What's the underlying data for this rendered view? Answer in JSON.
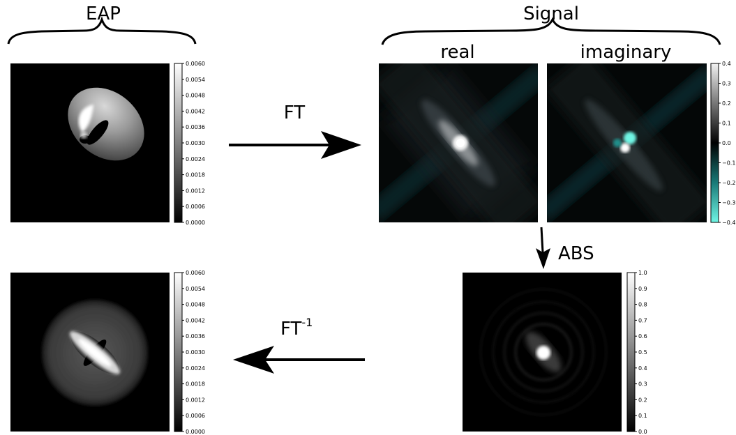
{
  "labels": {
    "eap": "EAP",
    "signal": "Signal",
    "real": "real",
    "imaginary": "imaginary",
    "ft": "FT",
    "abs": "ABS",
    "ift_base": "FT",
    "ift_sup": "-1"
  },
  "colorbars": {
    "eap_top": [
      "0.0060",
      "0.0054",
      "0.0048",
      "0.0042",
      "0.0036",
      "0.0030",
      "0.0024",
      "0.0018",
      "0.0012",
      "0.0006",
      "0.0000"
    ],
    "signal": [
      "0.4",
      "0.3",
      "0.2",
      "0.1",
      "0.0",
      "−0.1",
      "−0.2",
      "−0.3",
      "−0.4"
    ],
    "eap_bottom": [
      "0.0060",
      "0.0054",
      "0.0048",
      "0.0042",
      "0.0036",
      "0.0030",
      "0.0024",
      "0.0018",
      "0.0012",
      "0.0006",
      "0.0000"
    ],
    "abs": [
      "1.0",
      "0.9",
      "0.8",
      "0.7",
      "0.6",
      "0.5",
      "0.4",
      "0.3",
      "0.2",
      "0.1",
      "0.0"
    ]
  },
  "colors": {
    "background": "#ffffff",
    "image_bg": "#000000",
    "negative_accent": "#5fe8d8",
    "arrow": "#000000"
  }
}
